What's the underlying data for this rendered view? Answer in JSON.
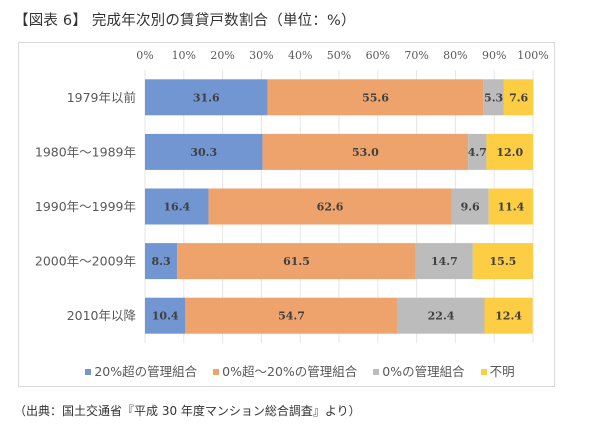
{
  "title": "【図表 6】 完成年次別の賃貸戸数割合（単位：%）",
  "source": "（出典：国土交通省『平成 30 年度マンション総合調査』より）",
  "chart_data": {
    "type": "bar",
    "orientation": "horizontal",
    "stacked": "percent",
    "title": "【図表 6】 完成年次別の賃貸戸数割合（単位：%）",
    "xlabel": "",
    "ylabel": "",
    "xlim": [
      0,
      100
    ],
    "x_ticks": [
      "0%",
      "10%",
      "20%",
      "30%",
      "40%",
      "50%",
      "60%",
      "70%",
      "80%",
      "90%",
      "100%"
    ],
    "x_axis_position": "top",
    "grid": true,
    "legend_position": "bottom",
    "categories": [
      "1979年以前",
      "1980年～1989年",
      "1990年～1999年",
      "2000年～2009年",
      "2010年以降"
    ],
    "series": [
      {
        "name": "20%超の管理組合",
        "color": "#7296d2",
        "values": [
          31.6,
          30.3,
          16.4,
          8.3,
          10.4
        ]
      },
      {
        "name": "0%超～20%の管理組合",
        "color": "#eea26c",
        "values": [
          55.6,
          53.0,
          62.6,
          61.5,
          54.7
        ]
      },
      {
        "name": "0%の管理組合",
        "color": "#bcbcbc",
        "values": [
          5.3,
          4.7,
          9.6,
          14.7,
          22.4
        ]
      },
      {
        "name": "不明",
        "color": "#fdcd44",
        "values": [
          7.6,
          12.0,
          11.4,
          15.5,
          12.4
        ]
      }
    ],
    "value_labels": [
      [
        "31.6",
        "55.6",
        "5.3",
        "7.6"
      ],
      [
        "30.3",
        "53.0",
        "4.7",
        "12.0"
      ],
      [
        "16.4",
        "62.6",
        "9.6",
        "11.4"
      ],
      [
        "8.3",
        "61.5",
        "14.7",
        "15.5"
      ],
      [
        "10.4",
        "54.7",
        "22.4",
        "12.4"
      ]
    ]
  }
}
